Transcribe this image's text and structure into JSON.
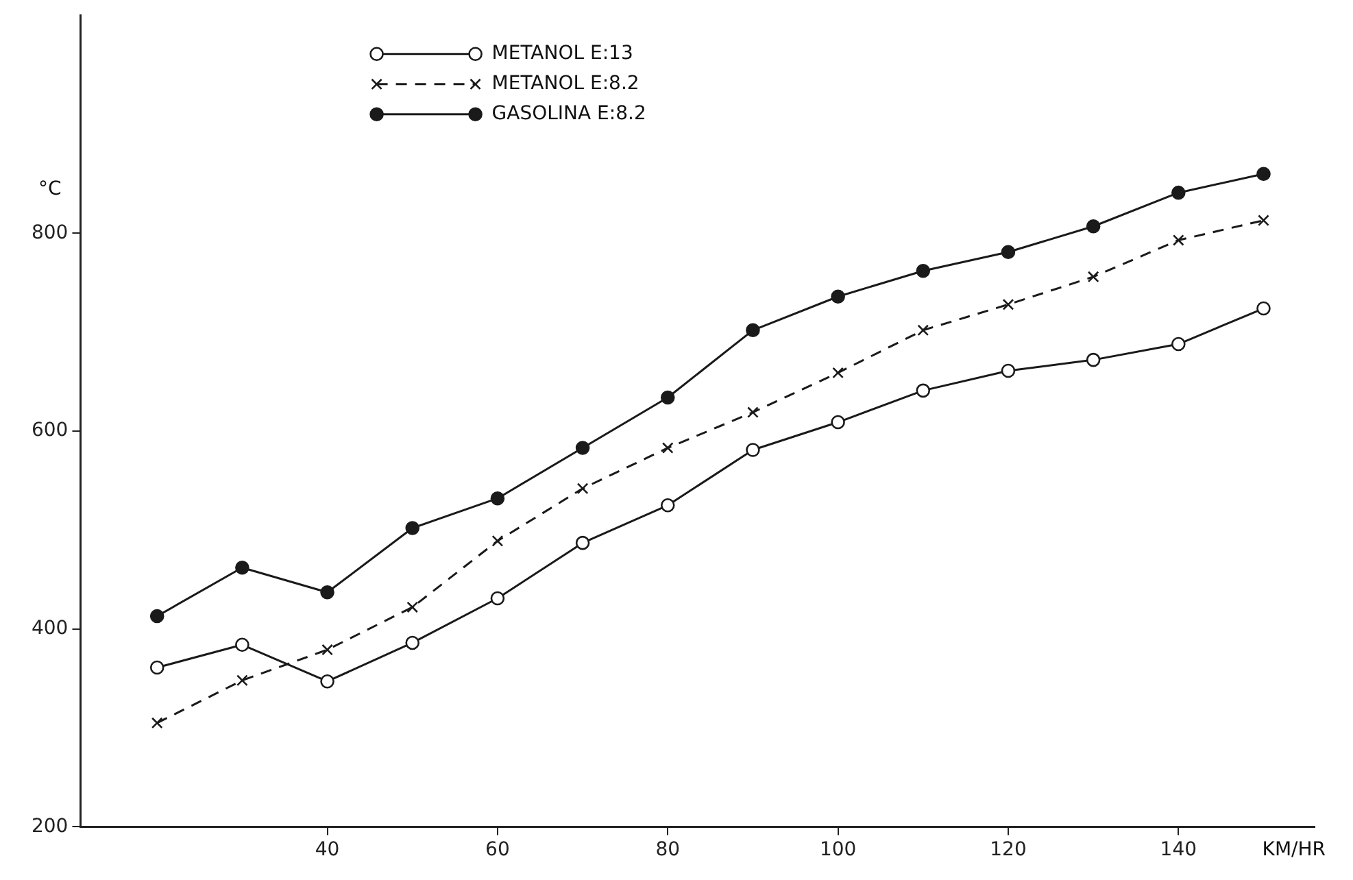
{
  "chart_data": {
    "type": "line",
    "xlabel": "KM/HR",
    "ylabel": "°C",
    "x": [
      20,
      30,
      40,
      50,
      60,
      70,
      80,
      90,
      100,
      110,
      120,
      130,
      140,
      150
    ],
    "series": [
      {
        "name": "METANOL E:13",
        "color": "#1a1a1a",
        "marker": "circle",
        "line_style": "solid",
        "values": [
          361,
          384,
          347,
          386,
          431,
          487,
          525,
          581,
          609,
          641,
          661,
          672,
          688,
          724
        ]
      },
      {
        "name": "METANOL E:8.2",
        "color": "#1a1a1a",
        "marker": "cross",
        "line_style": "dashed",
        "values": [
          305,
          348,
          379,
          422,
          489,
          542,
          583,
          619,
          659,
          702,
          728,
          756,
          793,
          813
        ]
      },
      {
        "name": "GASOLINA E:8.2",
        "color": "#1a1a1a",
        "marker": "circle",
        "line_style": "solid",
        "values": [
          413,
          462,
          437,
          502,
          532,
          583,
          634,
          702,
          736,
          762,
          781,
          807,
          841,
          860
        ]
      }
    ],
    "xlim": [
      11,
      156
    ],
    "xticks": [
      40,
      60,
      80,
      100,
      120,
      140
    ],
    "ylim": [
      200,
      1020
    ],
    "yticks": [
      200,
      400,
      600,
      800
    ],
    "grid": false,
    "legend": "top left"
  }
}
